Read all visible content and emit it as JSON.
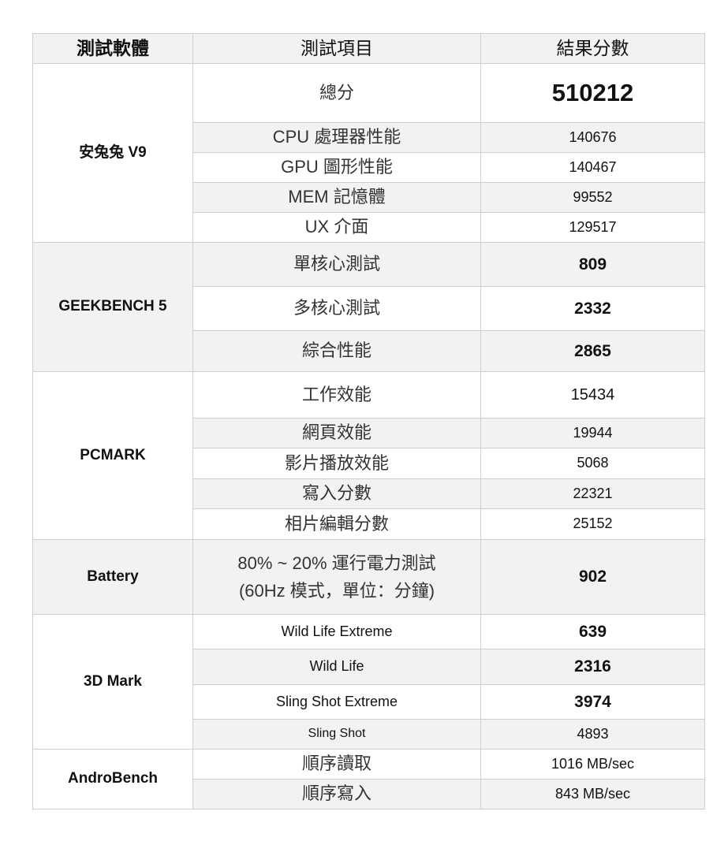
{
  "header": {
    "software": "測試軟體",
    "item": "測試項目",
    "result": "結果分數"
  },
  "groups": [
    {
      "name": "安兔兔 V9",
      "rows": [
        {
          "label": "總分",
          "value": "510212"
        },
        {
          "label": "CPU  處理器性能",
          "value": "140676"
        },
        {
          "label": "GPU  圖形性能",
          "value": "140467"
        },
        {
          "label": "MEM  記憶體",
          "value": "99552"
        },
        {
          "label": "UX  介面",
          "value": "129517"
        }
      ]
    },
    {
      "name": "GEEKBENCH 5",
      "rows": [
        {
          "label": "單核心測試",
          "value": "809"
        },
        {
          "label": "多核心測試",
          "value": "2332"
        },
        {
          "label": "綜合性能",
          "value": "2865"
        }
      ]
    },
    {
      "name": "PCMARK",
      "rows": [
        {
          "label": "工作效能",
          "value": "15434"
        },
        {
          "label": "網頁效能",
          "value": "19944"
        },
        {
          "label": "影片播放效能",
          "value": "5068"
        },
        {
          "label": "寫入分數",
          "value": "22321"
        },
        {
          "label": "相片編輯分數",
          "value": "25152"
        }
      ]
    },
    {
      "name": "Battery",
      "rows": [
        {
          "label": "80% ~ 20%  運行電力測試",
          "label2": "(60Hz 模式，單位：分鐘)",
          "value": "902"
        }
      ]
    },
    {
      "name": "3D Mark",
      "rows": [
        {
          "label": "Wild Life Extreme",
          "value": "639"
        },
        {
          "label": "Wild Life",
          "value": "2316"
        },
        {
          "label": "Sling Shot Extreme",
          "value": "3974"
        },
        {
          "label": "Sling Shot",
          "value": "4893"
        }
      ]
    },
    {
      "name": "AndroBench",
      "rows": [
        {
          "label": "順序讀取",
          "value": "1016 MB/sec"
        },
        {
          "label": "順序寫入",
          "value": "843 MB/sec"
        }
      ]
    }
  ],
  "colors": {
    "border": "#cfcfcf",
    "shade": "#f2f2f2"
  }
}
